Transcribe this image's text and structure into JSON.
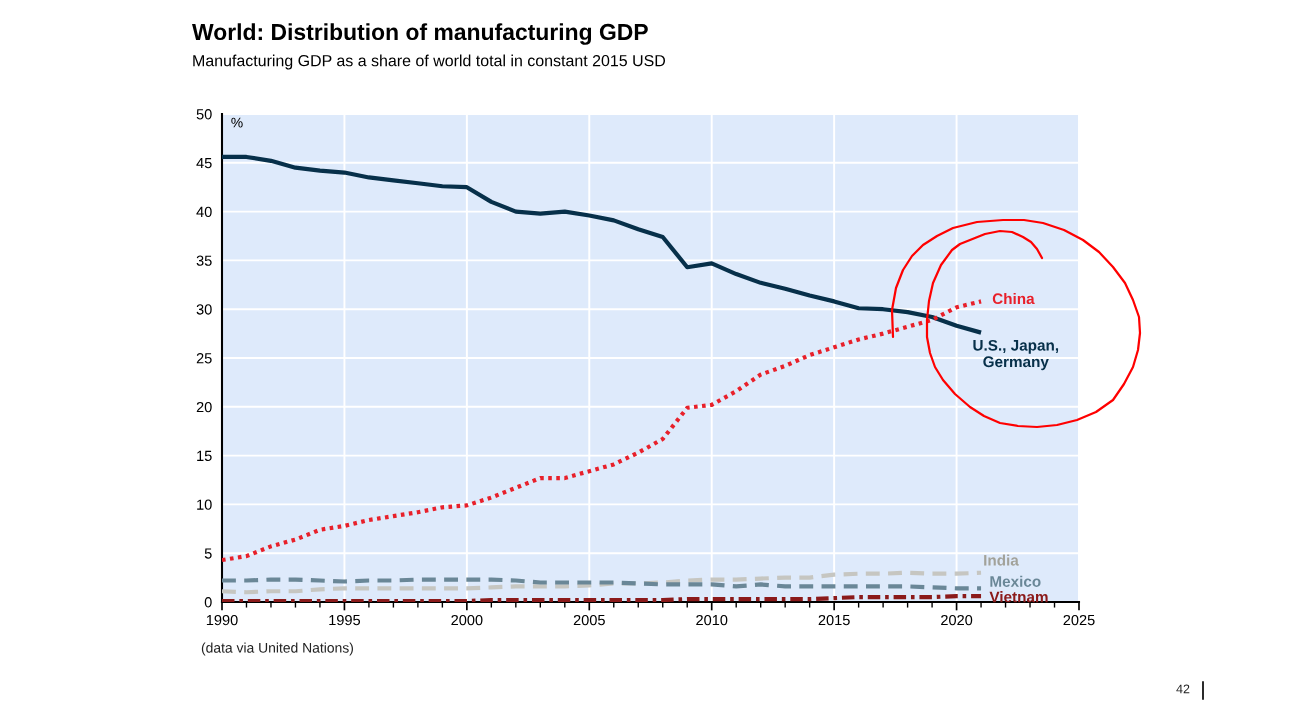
{
  "chart_data": {
    "type": "line",
    "title": "World: Distribution of manufacturing GDP",
    "subtitle": "Manufacturing GDP as a share of world total in constant 2015 USD",
    "ylabel": "%",
    "annotations": [
      "(data via United Nations)",
      "42"
    ],
    "x": [
      1990,
      1991,
      1992,
      1993,
      1994,
      1995,
      1996,
      1997,
      1998,
      1999,
      2000,
      2001,
      2002,
      2003,
      2004,
      2005,
      2006,
      2007,
      2008,
      2009,
      2010,
      2011,
      2012,
      2013,
      2014,
      2015,
      2016,
      2017,
      2018,
      2019,
      2020,
      2021
    ],
    "series": [
      {
        "name": "U.S., Japan, Germany",
        "color": "#07304a",
        "line_style": "solid",
        "values": [
          45.6,
          45.6,
          45.2,
          44.5,
          44.2,
          44.0,
          43.5,
          43.2,
          42.9,
          42.6,
          42.5,
          41.0,
          40.0,
          39.8,
          40.0,
          39.6,
          39.1,
          38.2,
          37.4,
          34.3,
          34.7,
          33.6,
          32.7,
          32.1,
          31.4,
          30.8,
          30.1,
          30.0,
          29.7,
          29.2,
          28.3,
          27.6
        ]
      },
      {
        "name": "China",
        "color": "#e8202a",
        "line_style": "dotted",
        "values": [
          4.3,
          4.7,
          5.7,
          6.4,
          7.4,
          7.8,
          8.4,
          8.8,
          9.2,
          9.7,
          9.9,
          10.7,
          11.7,
          12.7,
          12.7,
          13.4,
          14.1,
          15.3,
          16.7,
          19.9,
          20.2,
          21.6,
          23.3,
          24.2,
          25.3,
          26.1,
          26.9,
          27.5,
          28.2,
          28.9,
          30.2,
          30.8
        ]
      },
      {
        "name": "India",
        "color": "#c6c6c1",
        "line_style": "dashed",
        "values": [
          1.1,
          1.0,
          1.1,
          1.1,
          1.3,
          1.4,
          1.4,
          1.4,
          1.4,
          1.4,
          1.4,
          1.5,
          1.6,
          1.6,
          1.6,
          1.7,
          1.9,
          1.9,
          2.0,
          2.2,
          2.3,
          2.3,
          2.4,
          2.5,
          2.5,
          2.8,
          2.9,
          2.9,
          3.0,
          2.9,
          2.9,
          3.0
        ]
      },
      {
        "name": "Mexico",
        "color": "#6a8797",
        "line_style": "dashed",
        "values": [
          2.2,
          2.2,
          2.3,
          2.3,
          2.2,
          2.1,
          2.2,
          2.2,
          2.3,
          2.3,
          2.3,
          2.3,
          2.2,
          2.0,
          2.0,
          2.0,
          2.0,
          1.9,
          1.8,
          1.8,
          1.8,
          1.6,
          1.8,
          1.6,
          1.6,
          1.6,
          1.6,
          1.6,
          1.6,
          1.5,
          1.4,
          1.4
        ]
      },
      {
        "name": "Vietnam",
        "color": "#8b1a1a",
        "line_style": "dashdot",
        "values": [
          0.1,
          0.1,
          0.1,
          0.1,
          0.1,
          0.1,
          0.1,
          0.1,
          0.1,
          0.1,
          0.1,
          0.2,
          0.2,
          0.2,
          0.2,
          0.2,
          0.2,
          0.2,
          0.2,
          0.3,
          0.3,
          0.3,
          0.3,
          0.3,
          0.3,
          0.4,
          0.5,
          0.5,
          0.5,
          0.5,
          0.6,
          0.6
        ]
      }
    ],
    "xlim": [
      1990,
      2025
    ],
    "ylim": [
      0,
      50
    ],
    "xticks": [
      1990,
      1995,
      2000,
      2005,
      2010,
      2015,
      2020,
      2025
    ],
    "yticks": [
      0,
      5,
      10,
      15,
      20,
      25,
      30,
      35,
      40,
      45,
      50
    ],
    "grid": true
  }
}
